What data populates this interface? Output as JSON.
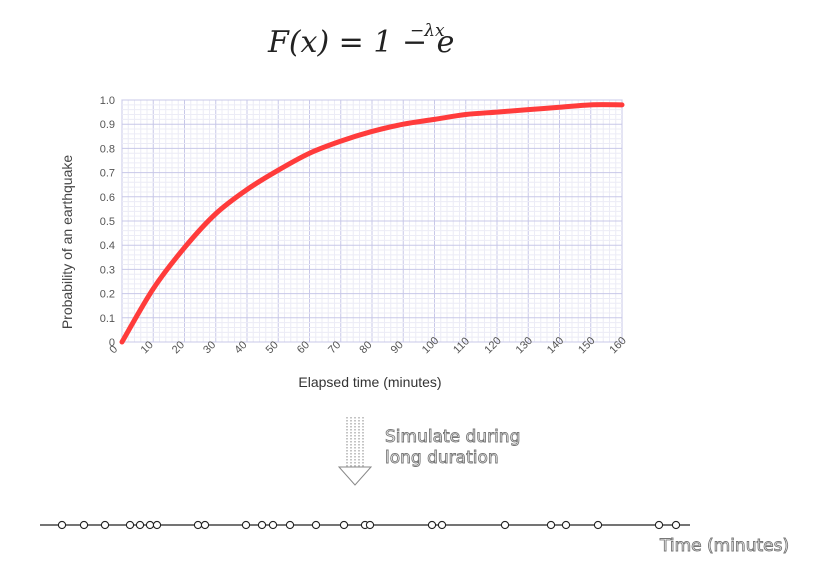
{
  "formula": {
    "lhs": "F(x) = 1 − e",
    "exponent": "−λx"
  },
  "chart_data": {
    "type": "line",
    "ylabel": "Probability of an earthquake",
    "xlabel": "Elapsed time (minutes)",
    "xlim": [
      0,
      160
    ],
    "ylim": [
      0,
      1.0
    ],
    "xticks": [
      "0",
      "10",
      "20",
      "30",
      "40",
      "50",
      "60",
      "70",
      "80",
      "90",
      "100",
      "110",
      "120",
      "130",
      "140",
      "150",
      "160"
    ],
    "yticks": [
      "0",
      "0.1",
      "0.2",
      "0.3",
      "0.4",
      "0.5",
      "0.6",
      "0.7",
      "0.8",
      "0.9",
      "1.0"
    ],
    "grid": true,
    "series": [
      {
        "color": "#ff3b3b",
        "x": [
          0,
          10,
          20,
          30,
          40,
          50,
          60,
          70,
          80,
          90,
          100,
          110,
          120,
          130,
          140,
          150,
          160
        ],
        "y": [
          0,
          0.22,
          0.39,
          0.53,
          0.63,
          0.71,
          0.78,
          0.83,
          0.87,
          0.9,
          0.92,
          0.94,
          0.95,
          0.96,
          0.97,
          0.98,
          0.98
        ]
      }
    ]
  },
  "arrow": {
    "caption": "Simulate during\nlong duration"
  },
  "timeline": {
    "label": "Time (minutes)",
    "events": [
      62,
      84,
      105,
      130,
      140,
      150,
      157,
      198,
      205,
      246,
      262,
      273,
      290,
      316,
      344,
      365,
      370,
      432,
      442,
      505,
      551,
      566,
      598,
      659,
      676
    ]
  }
}
